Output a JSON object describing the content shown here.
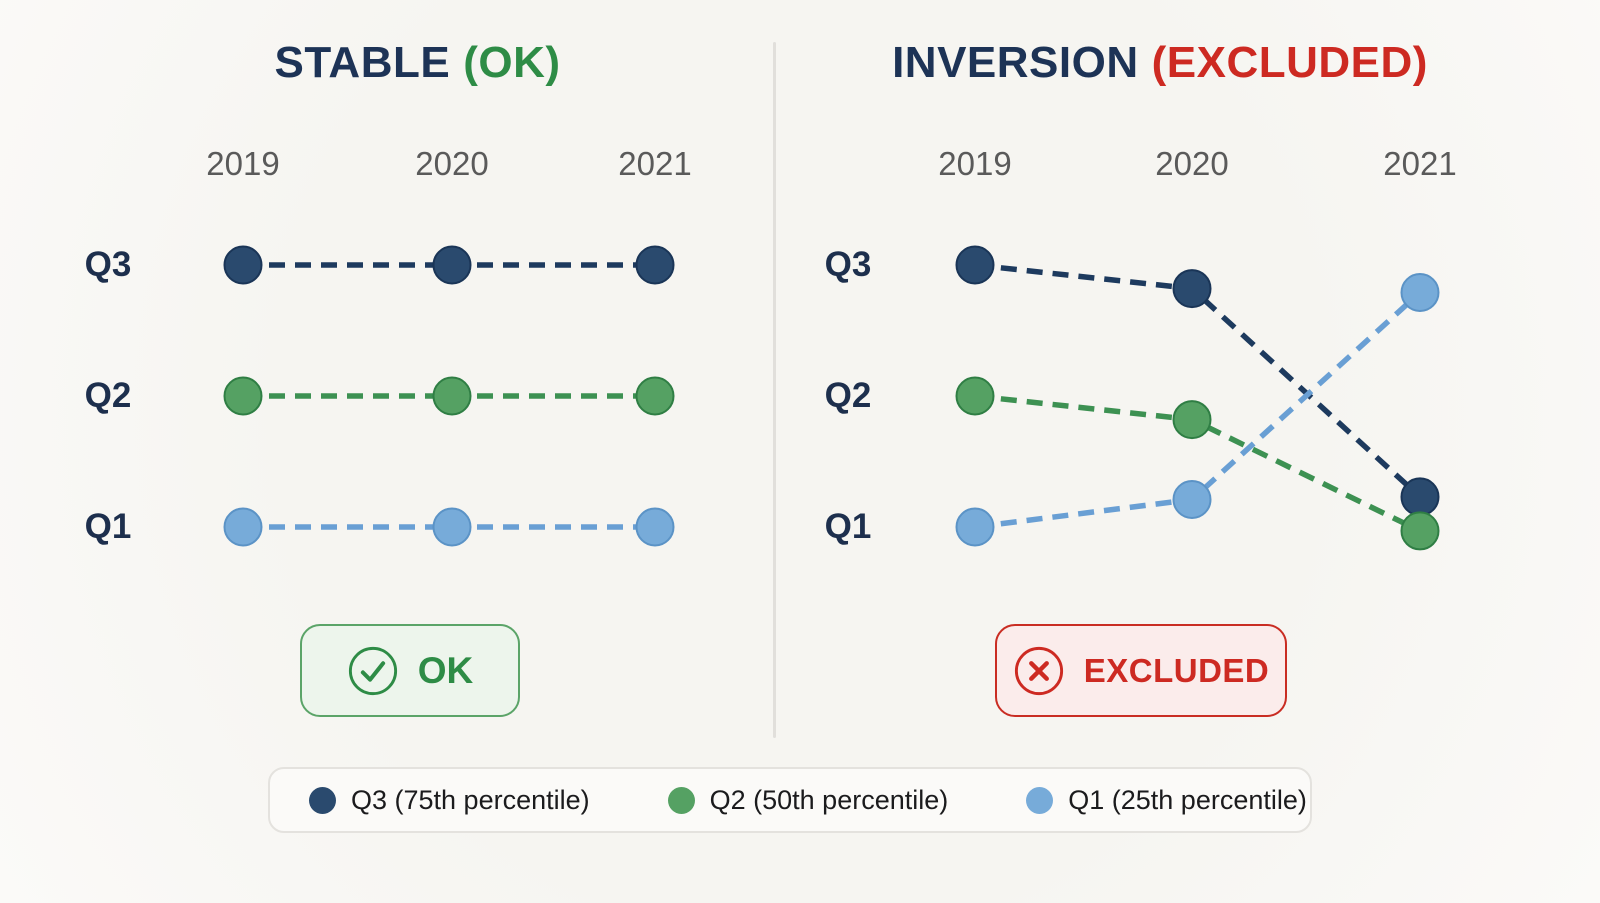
{
  "colors": {
    "bg": "#f6f5f1",
    "title": "#1d3356",
    "year": "#5a5a5a",
    "qlabel": "#1d2f4d",
    "navy": "#2a4a6e",
    "navy_line": "#1d3a5e",
    "navy_border": "#1a3557",
    "green": "#55a163",
    "green_line": "#3d9152",
    "green_border": "#2f7e44",
    "blue": "#77abd9",
    "blue_line": "#699fd4",
    "blue_border": "#5b93c6",
    "ok_text": "#2e8c46",
    "ok_bg": "#edf5ec",
    "ok_border": "#5ba468",
    "ex_text": "#cd2a22",
    "ex_bg": "#fbeceb",
    "ex_border": "#c92d23",
    "legend_text": "#1b1b1d",
    "legend_bg": "#fbfaf8",
    "legend_border": "#e4e2de",
    "divider": "#e1dfdb"
  },
  "chart_data": [
    {
      "type": "line",
      "id": "stable",
      "title": "STABLE",
      "title_suffix": "(OK)",
      "x": [
        "2019",
        "2020",
        "2021"
      ],
      "row_labels": [
        "Q3",
        "Q2",
        "Q1"
      ],
      "line_style": "dashed",
      "marker": "circle",
      "series": [
        {
          "name": "Q3",
          "color": "navy",
          "values": [
            3,
            3,
            3
          ]
        },
        {
          "name": "Q2",
          "color": "green",
          "values": [
            2,
            2,
            2
          ]
        },
        {
          "name": "Q1",
          "color": "blue",
          "values": [
            1,
            1,
            1
          ]
        }
      ],
      "badge": {
        "label": "OK",
        "icon": "check-circle"
      }
    },
    {
      "type": "line",
      "id": "inversion",
      "title": "INVERSION",
      "title_suffix": "(EXCLUDED)",
      "x": [
        "2019",
        "2020",
        "2021"
      ],
      "row_labels": [
        "Q3",
        "Q2",
        "Q1"
      ],
      "line_style": "dashed",
      "marker": "circle",
      "series": [
        {
          "name": "Q3",
          "color": "navy",
          "values": [
            3,
            2.82,
            1.23
          ]
        },
        {
          "name": "Q2",
          "color": "green",
          "values": [
            2,
            1.82,
            0.97
          ]
        },
        {
          "name": "Q1",
          "color": "blue",
          "values": [
            1,
            1.21,
            2.79
          ]
        }
      ],
      "badge": {
        "label": "EXCLUDED",
        "icon": "x-circle"
      }
    }
  ],
  "legend": {
    "items": [
      {
        "label": "Q3 (75th percentile)",
        "color": "navy"
      },
      {
        "label": "Q2 (50th percentile)",
        "color": "green"
      },
      {
        "label": "Q1 (25th percentile)",
        "color": "blue"
      }
    ]
  }
}
